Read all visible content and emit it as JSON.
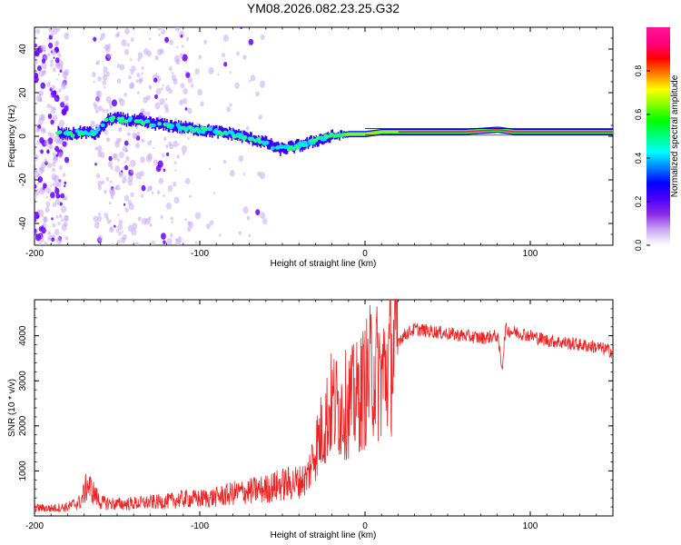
{
  "title": "YM08.2026.082.23.25.G32",
  "chart_data": [
    {
      "type": "heatmap",
      "title": "YM08.2026.082.23.25.G32",
      "xlabel": "Height of straight line (km)",
      "ylabel": "Frequency (Hz)",
      "xlim": [
        -200,
        150
      ],
      "ylim": [
        -50,
        50
      ],
      "xticks": [
        -200,
        -100,
        0,
        100
      ],
      "yticks": [
        -40,
        -20,
        0,
        20,
        40
      ],
      "colorbar": {
        "label": "Normalized spectral amplitude",
        "range": [
          0,
          1
        ],
        "ticks": [
          0.0,
          0.2,
          0.4,
          0.6,
          0.8
        ],
        "colors": [
          "#ffffff",
          "#c9a7f2",
          "#8a2be2",
          "#4b00ff",
          "#0000ff",
          "#0080ff",
          "#00ffff",
          "#00ff80",
          "#00ff00",
          "#80ff00",
          "#ffff00",
          "#ff8000",
          "#ff0000",
          "#ff0080",
          "#ff1493"
        ]
      },
      "ridge": [
        {
          "x": -185,
          "f": 1
        },
        {
          "x": -178,
          "f": 1
        },
        {
          "x": -170,
          "f": 2
        },
        {
          "x": -163,
          "f": 1
        },
        {
          "x": -155,
          "f": 8
        },
        {
          "x": -148,
          "f": 8
        },
        {
          "x": -140,
          "f": 7
        },
        {
          "x": -130,
          "f": 6
        },
        {
          "x": -120,
          "f": 5
        },
        {
          "x": -110,
          "f": 4
        },
        {
          "x": -100,
          "f": 3
        },
        {
          "x": -90,
          "f": 2
        },
        {
          "x": -80,
          "f": 1
        },
        {
          "x": -70,
          "f": -1
        },
        {
          "x": -60,
          "f": -3
        },
        {
          "x": -52,
          "f": -6
        },
        {
          "x": -45,
          "f": -5
        },
        {
          "x": -38,
          "f": -4
        },
        {
          "x": -30,
          "f": -2
        },
        {
          "x": -20,
          "f": 0
        },
        {
          "x": -10,
          "f": 1
        },
        {
          "x": 0,
          "f": 1
        },
        {
          "x": 10,
          "f": 2
        },
        {
          "x": 30,
          "f": 2
        },
        {
          "x": 60,
          "f": 2
        },
        {
          "x": 80,
          "f": 3
        },
        {
          "x": 90,
          "f": 2
        },
        {
          "x": 120,
          "f": 2
        },
        {
          "x": 150,
          "f": 2
        }
      ]
    },
    {
      "type": "line",
      "xlabel": "Height of straight line (km)",
      "ylabel": "SNR (10 * v/v)",
      "xlim": [
        -200,
        150
      ],
      "ylim": [
        0,
        4800
      ],
      "xticks": [
        -200,
        -100,
        0,
        100
      ],
      "yticks": [
        1000,
        2000,
        3000,
        4000
      ],
      "color": "#ee2222",
      "series": [
        {
          "name": "SNR",
          "x": [
            -200,
            -190,
            -180,
            -172,
            -168,
            -160,
            -150,
            -140,
            -130,
            -120,
            -110,
            -100,
            -90,
            -80,
            -70,
            -60,
            -50,
            -40,
            -35,
            -30,
            -25,
            -20,
            -15,
            -10,
            -5,
            0,
            5,
            10,
            15,
            20,
            25,
            30,
            40,
            50,
            60,
            70,
            80,
            83,
            85,
            88,
            95,
            100,
            110,
            120,
            130,
            140,
            150
          ],
          "y": [
            180,
            170,
            200,
            320,
            700,
            300,
            260,
            280,
            300,
            320,
            380,
            380,
            420,
            500,
            550,
            600,
            700,
            750,
            850,
            1500,
            2000,
            2500,
            2400,
            2500,
            2600,
            2900,
            3300,
            3100,
            3400,
            3900,
            4050,
            4150,
            4100,
            4050,
            4000,
            3950,
            4000,
            3300,
            4150,
            4100,
            4050,
            4000,
            3900,
            3850,
            3800,
            3750,
            3650
          ]
        }
      ]
    }
  ]
}
